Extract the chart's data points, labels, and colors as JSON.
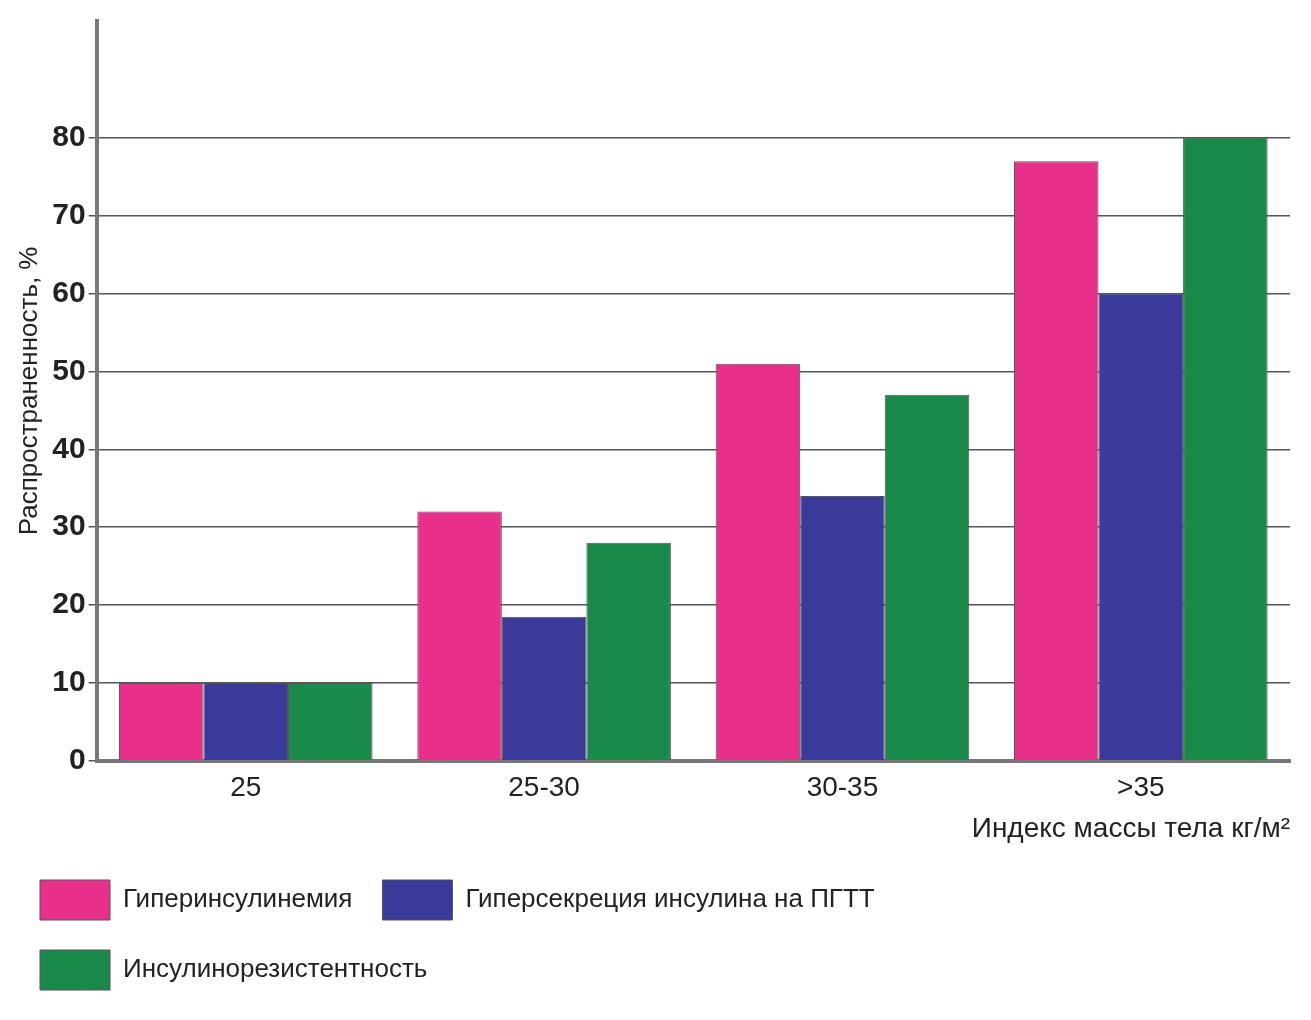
{
  "chart_data": {
    "type": "bar",
    "xlabel": "Индекс массы тела кг/м²",
    "ylabel": "Распространенность, %",
    "categories": [
      "25",
      "25-30",
      "30-35",
      ">35"
    ],
    "series": [
      {
        "name": "Гиперинсулинемия",
        "color": "#e8308a",
        "values": [
          10,
          32,
          51,
          77
        ]
      },
      {
        "name": "Гиперсекреция инсулина на ПГТТ",
        "color": "#3a3a9a",
        "values": [
          10,
          18.5,
          34,
          60
        ]
      },
      {
        "name": "Инсулинорезистентность",
        "color": "#1a8a4a",
        "values": [
          10,
          28,
          47,
          80
        ]
      }
    ],
    "ylim": [
      0,
      95
    ],
    "yticks": [
      0,
      10,
      20,
      30,
      40,
      50,
      60,
      70,
      80
    ],
    "grid": "y",
    "legend": "bottom left"
  }
}
